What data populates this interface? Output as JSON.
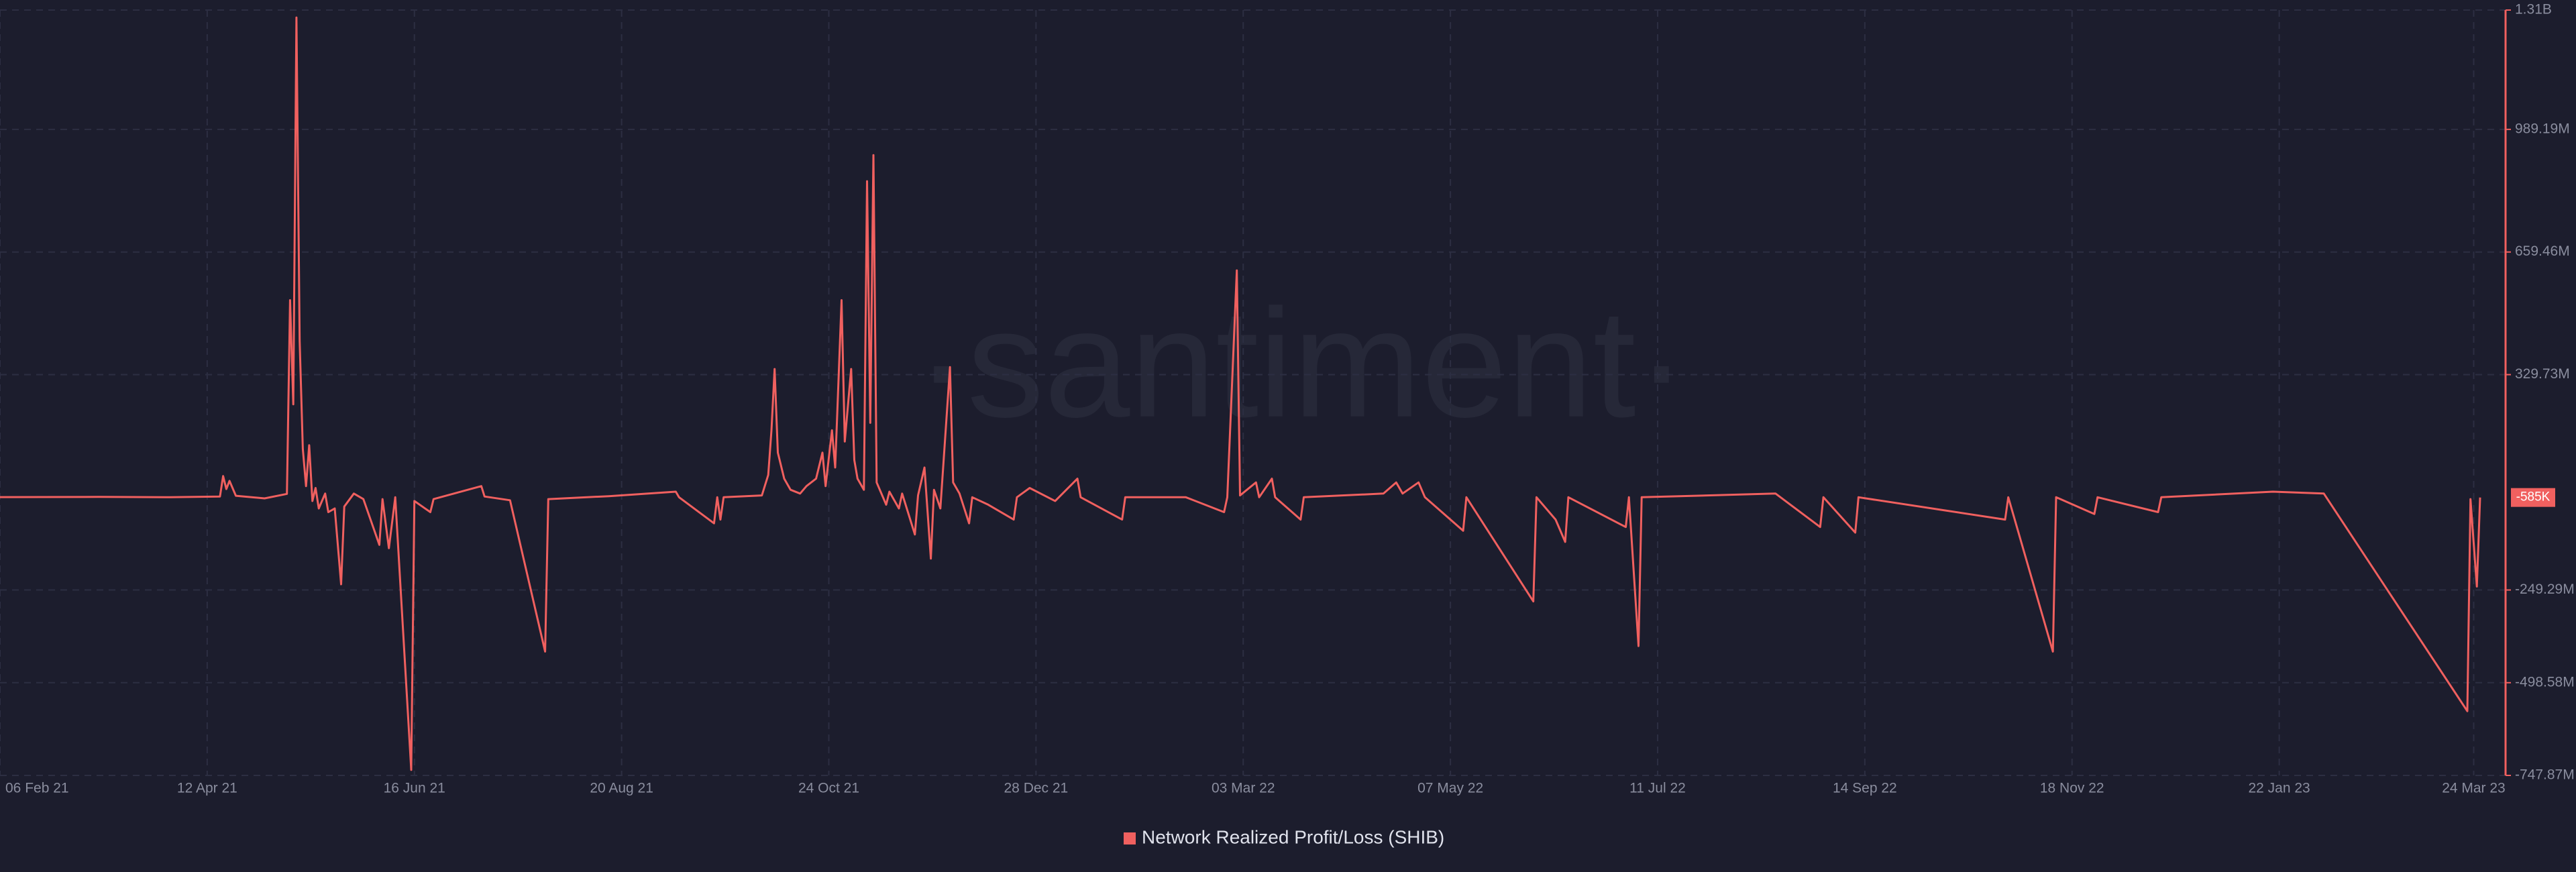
{
  "chart_data": {
    "type": "line",
    "watermark": "·santiment·",
    "xlim": [
      "2021-02-06",
      "2023-04-03"
    ],
    "ylim": [
      -747870000,
      1310000000
    ],
    "xticks": [
      {
        "value": "2021-02-06",
        "label": "06 Feb 21"
      },
      {
        "value": "2021-04-12",
        "label": "12 Apr 21"
      },
      {
        "value": "2021-06-16",
        "label": "16 Jun 21"
      },
      {
        "value": "2021-08-20",
        "label": "20 Aug 21"
      },
      {
        "value": "2021-10-24",
        "label": "24 Oct 21"
      },
      {
        "value": "2021-12-28",
        "label": "28 Dec 21"
      },
      {
        "value": "2022-03-03",
        "label": "03 Mar 22"
      },
      {
        "value": "2022-05-07",
        "label": "07 May 22"
      },
      {
        "value": "2022-07-11",
        "label": "11 Jul 22"
      },
      {
        "value": "2022-09-14",
        "label": "14 Sep 22"
      },
      {
        "value": "2022-11-18",
        "label": "18 Nov 22"
      },
      {
        "value": "2023-01-22",
        "label": "22 Jan 23"
      },
      {
        "value": "2023-03-24",
        "label": "24 Mar 23"
      }
    ],
    "yticks": [
      {
        "value": 1310000000,
        "label": "1.31B"
      },
      {
        "value": 989190000,
        "label": "989.19M"
      },
      {
        "value": 659460000,
        "label": "659.46M"
      },
      {
        "value": 329730000,
        "label": "329.73M"
      },
      {
        "value": -249290000,
        "label": "-249.29M"
      },
      {
        "value": -498580000,
        "label": "-498.58M"
      },
      {
        "value": -747870000,
        "label": "-747.87M"
      }
    ],
    "grid": true,
    "last_value": {
      "value": -585000,
      "label": "-585K"
    },
    "x": [
      "2021-02-06",
      "2021-03-09",
      "2021-03-30",
      "2021-04-16",
      "2021-04-17",
      "2021-04-18",
      "2021-04-19",
      "2021-04-21",
      "2021-04-30",
      "2021-05-07",
      "2021-05-08",
      "2021-05-09",
      "2021-05-10",
      "2021-05-11",
      "2021-05-12",
      "2021-05-13",
      "2021-05-14",
      "2021-05-15",
      "2021-05-16",
      "2021-05-17",
      "2021-05-19",
      "2021-05-20",
      "2021-05-22",
      "2021-05-24",
      "2021-05-25",
      "2021-05-28",
      "2021-05-31",
      "2021-06-05",
      "2021-06-06",
      "2021-06-08",
      "2021-06-10",
      "2021-06-15",
      "2021-06-16",
      "2021-06-21",
      "2021-06-22",
      "2021-07-07",
      "2021-07-08",
      "2021-07-16",
      "2021-07-27",
      "2021-07-28",
      "2021-08-16",
      "2021-09-06",
      "2021-09-07",
      "2021-09-18",
      "2021-09-19",
      "2021-09-20",
      "2021-09-21",
      "2021-10-03",
      "2021-10-05",
      "2021-10-06",
      "2021-10-07",
      "2021-10-08",
      "2021-10-10",
      "2021-10-12",
      "2021-10-15",
      "2021-10-17",
      "2021-10-20",
      "2021-10-22",
      "2021-10-23",
      "2021-10-25",
      "2021-10-26",
      "2021-10-28",
      "2021-10-29",
      "2021-10-31",
      "2021-11-01",
      "2021-11-02",
      "2021-11-04",
      "2021-11-05",
      "2021-11-06",
      "2021-11-07",
      "2021-11-08",
      "2021-11-11",
      "2021-11-12",
      "2021-11-15",
      "2021-11-16",
      "2021-11-20",
      "2021-11-21",
      "2021-11-23",
      "2021-11-25",
      "2021-11-26",
      "2021-11-28",
      "2021-12-01",
      "2021-12-02",
      "2021-12-04",
      "2021-12-07",
      "2021-12-08",
      "2021-12-13",
      "2021-12-21",
      "2021-12-22",
      "2021-12-26",
      "2022-01-03",
      "2022-01-10",
      "2022-01-11",
      "2022-01-24",
      "2022-01-25",
      "2022-02-13",
      "2022-02-25",
      "2022-02-26",
      "2022-03-01",
      "2022-03-02",
      "2022-03-07",
      "2022-03-08",
      "2022-03-12",
      "2022-03-13",
      "2022-03-21",
      "2022-03-22",
      "2022-04-16",
      "2022-04-20",
      "2022-04-22",
      "2022-04-27",
      "2022-04-29",
      "2022-05-11",
      "2022-05-12",
      "2022-06-02",
      "2022-06-03",
      "2022-06-09",
      "2022-06-12",
      "2022-06-13",
      "2022-07-01",
      "2022-07-02",
      "2022-07-05",
      "2022-07-06",
      "2022-08-17",
      "2022-08-31",
      "2022-09-01",
      "2022-09-11",
      "2022-09-12",
      "2022-10-28",
      "2022-10-29",
      "2022-11-12",
      "2022-11-13",
      "2022-11-25",
      "2022-11-26",
      "2022-12-15",
      "2022-12-16",
      "2023-01-20",
      "2023-02-05",
      "2023-03-22",
      "2023-03-23",
      "2023-03-25",
      "2023-03-26"
    ],
    "series": [
      {
        "name": "Network Realized Profit/Loss (SHIB)",
        "color": "#f0605f",
        "values": [
          500000,
          1000000,
          0,
          2000000,
          57000000,
          22000000,
          44000000,
          4000000,
          -3000000,
          9000000,
          530000000,
          250000000,
          1290000000,
          420000000,
          130000000,
          30000000,
          140000000,
          -10000000,
          25000000,
          -30000000,
          10000000,
          -40000000,
          -30000000,
          -234000000,
          -25000000,
          10000000,
          -5000000,
          -128000000,
          -5000000,
          -137000000,
          0,
          -733000000,
          -10000000,
          -40000000,
          -5000000,
          30000000,
          2000000,
          -8000000,
          -415000000,
          -5000000,
          3000000,
          15000000,
          0,
          -70000000,
          0,
          -60000000,
          0,
          5000000,
          60000000,
          180000000,
          345000000,
          120000000,
          50000000,
          20000000,
          10000000,
          30000000,
          50000000,
          120000000,
          30000000,
          180000000,
          80000000,
          530000000,
          150000000,
          345000000,
          100000000,
          50000000,
          20000000,
          850000000,
          200000000,
          920000000,
          40000000,
          -20000000,
          15000000,
          -30000000,
          10000000,
          -100000000,
          5000000,
          80000000,
          -165000000,
          20000000,
          -30000000,
          350000000,
          40000000,
          10000000,
          -70000000,
          0,
          -20000000,
          -60000000,
          0,
          25000000,
          -10000000,
          50000000,
          0,
          -60000000,
          0,
          0,
          -40000000,
          0,
          610000000,
          5000000,
          40000000,
          0,
          50000000,
          0,
          -60000000,
          0,
          10000000,
          40000000,
          10000000,
          40000000,
          0,
          -90000000,
          0,
          -280000000,
          0,
          -60000000,
          -120000000,
          0,
          -80000000,
          0,
          -400000000,
          0,
          10000000,
          -80000000,
          0,
          -95000000,
          0,
          -60000000,
          0,
          -415000000,
          0,
          -45000000,
          0,
          -40000000,
          0,
          15000000,
          10000000,
          -575000000,
          -5000000,
          -240000000,
          -585000
        ]
      }
    ]
  }
}
